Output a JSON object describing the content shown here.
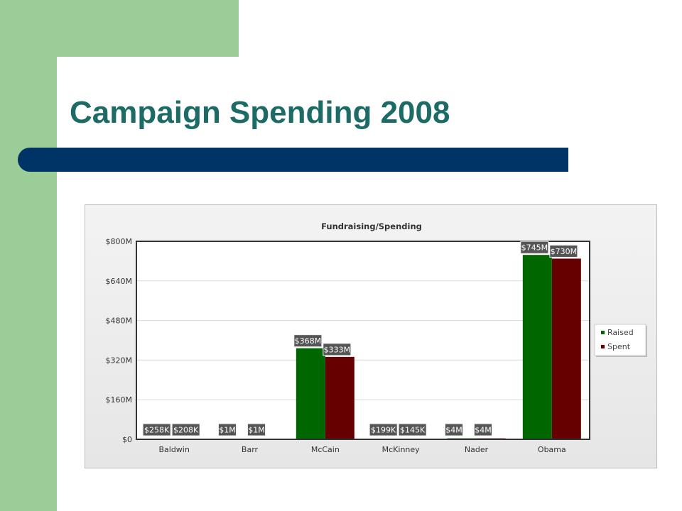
{
  "slide": {
    "title": "Campaign Spending 2008",
    "colors": {
      "green_panel": "#9ccc98",
      "title_text": "#1d6b66",
      "rule": "#003366"
    }
  },
  "chart_data": {
    "type": "bar",
    "title": "Fundraising/Spending",
    "xlabel": "",
    "ylabel": "",
    "categories": [
      "Baldwin",
      "Barr",
      "McCain",
      "McKinney",
      "Nader",
      "Obama"
    ],
    "series": [
      {
        "name": "Raised",
        "color": "#006600",
        "values": [
          0.258,
          1,
          368,
          0.199,
          4,
          745
        ],
        "labels": [
          "$258K",
          "$1M",
          "$368M",
          "$199K",
          "$4M",
          "$745M"
        ]
      },
      {
        "name": "Spent",
        "color": "#660000",
        "values": [
          0.208,
          1,
          333,
          0.145,
          4,
          730
        ],
        "labels": [
          "$208K",
          "$1M",
          "$333M",
          "$145K",
          "$4M",
          "$730M"
        ]
      }
    ],
    "ylim": [
      0,
      800
    ],
    "yticks": [
      {
        "value": 0,
        "label": "$0"
      },
      {
        "value": 160,
        "label": "$160M"
      },
      {
        "value": 320,
        "label": "$320M"
      },
      {
        "value": 480,
        "label": "$480M"
      },
      {
        "value": 640,
        "label": "$640M"
      },
      {
        "value": 800,
        "label": "$800M"
      }
    ],
    "units": "millions of USD",
    "grid": true,
    "legend": "right"
  }
}
